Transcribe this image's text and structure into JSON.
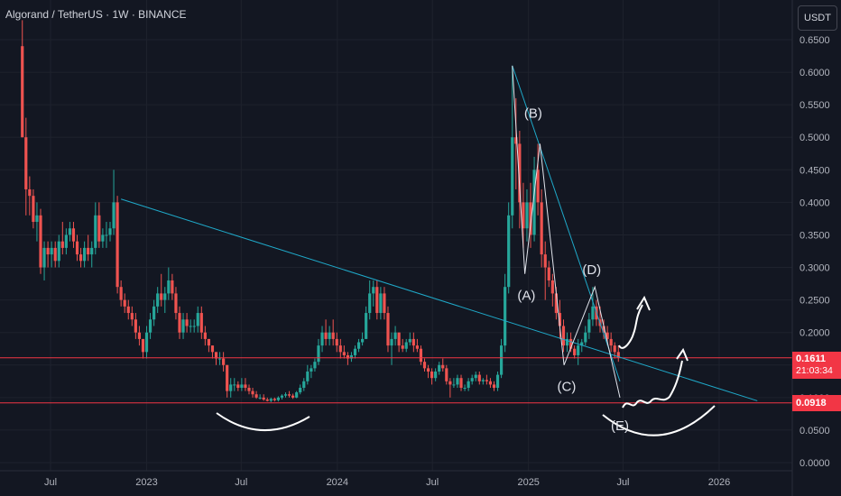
{
  "header": {
    "title": "Algorand / TetherUS · 1W · BINANCE",
    "currency_button": "USDT"
  },
  "colors": {
    "background": "#131722",
    "up": "#26a69a",
    "down": "#ef5350",
    "trendline": "#1fa9c9",
    "level": "#f23645",
    "grid": "#1e222d"
  },
  "price_tags": {
    "current_price": "0.1611",
    "countdown": "21:03:34",
    "support_price": "0.0918"
  },
  "chart_data": {
    "type": "candlestick",
    "title": "Algorand / TetherUS · 1W · BINANCE",
    "y_axis": {
      "ticks": [
        "0.6500",
        "0.6000",
        "0.5500",
        "0.5000",
        "0.4500",
        "0.4000",
        "0.3500",
        "0.3000",
        "0.2500",
        "0.2000",
        "0.1500",
        "0.1000",
        "0.0500",
        "0.0000"
      ],
      "range": [
        0,
        0.68
      ]
    },
    "x_axis": {
      "ticks": [
        "Jul",
        "2023",
        "Jul",
        "2024",
        "Jul",
        "2025",
        "Jul",
        "2026"
      ],
      "range": [
        "2022-05-01",
        "2026-05-01"
      ]
    },
    "price_line": {
      "price": 0.1611
    },
    "horizontal_levels": [
      0.1611,
      0.0918
    ],
    "trendlines": [
      {
        "from": [
          "2022-11-13",
          0.405
        ],
        "to": [
          "2026-03-15",
          0.095
        ]
      },
      {
        "from": [
          "2024-12-01",
          0.61
        ],
        "to": [
          "2025-06-25",
          0.125
        ]
      }
    ],
    "wave_labels": [
      {
        "label": "(A)",
        "date": "2024-12-28",
        "price": 0.25
      },
      {
        "label": "(B)",
        "date": "2025-01-10",
        "price": 0.53
      },
      {
        "label": "(C)",
        "date": "2025-03-15",
        "price": 0.11
      },
      {
        "label": "(D)",
        "date": "2025-05-02",
        "price": 0.29
      },
      {
        "label": "(E)",
        "date": "2025-06-25",
        "price": 0.05
      }
    ],
    "wave_path": [
      [
        "2024-12-01",
        0.61
      ],
      [
        "2024-12-25",
        0.29
      ],
      [
        "2025-01-23",
        0.49
      ],
      [
        "2025-03-10",
        0.15
      ],
      [
        "2025-05-08",
        0.27
      ],
      [
        "2025-06-25",
        0.1
      ]
    ],
    "candles": [
      [
        "2022-05-08",
        0.64,
        0.68,
        0.5,
        0.5
      ],
      [
        "2022-05-15",
        0.5,
        0.53,
        0.38,
        0.42
      ],
      [
        "2022-05-22",
        0.42,
        0.44,
        0.38,
        0.41
      ],
      [
        "2022-05-29",
        0.41,
        0.42,
        0.36,
        0.37
      ],
      [
        "2022-06-05",
        0.37,
        0.4,
        0.34,
        0.38
      ],
      [
        "2022-06-12",
        0.38,
        0.39,
        0.29,
        0.3
      ],
      [
        "2022-06-19",
        0.3,
        0.34,
        0.28,
        0.33
      ],
      [
        "2022-06-26",
        0.33,
        0.34,
        0.3,
        0.32
      ],
      [
        "2022-07-03",
        0.32,
        0.34,
        0.3,
        0.33
      ],
      [
        "2022-07-10",
        0.33,
        0.34,
        0.3,
        0.31
      ],
      [
        "2022-07-17",
        0.31,
        0.35,
        0.3,
        0.34
      ],
      [
        "2022-07-24",
        0.34,
        0.37,
        0.32,
        0.33
      ],
      [
        "2022-07-31",
        0.33,
        0.36,
        0.32,
        0.35
      ],
      [
        "2022-08-07",
        0.35,
        0.37,
        0.34,
        0.36
      ],
      [
        "2022-08-14",
        0.36,
        0.37,
        0.33,
        0.34
      ],
      [
        "2022-08-21",
        0.34,
        0.35,
        0.31,
        0.32
      ],
      [
        "2022-08-28",
        0.32,
        0.33,
        0.3,
        0.31
      ],
      [
        "2022-09-04",
        0.31,
        0.34,
        0.3,
        0.33
      ],
      [
        "2022-09-11",
        0.33,
        0.35,
        0.31,
        0.32
      ],
      [
        "2022-09-18",
        0.32,
        0.34,
        0.3,
        0.33
      ],
      [
        "2022-09-25",
        0.33,
        0.4,
        0.32,
        0.38
      ],
      [
        "2022-10-02",
        0.38,
        0.4,
        0.33,
        0.34
      ],
      [
        "2022-10-09",
        0.34,
        0.36,
        0.33,
        0.35
      ],
      [
        "2022-10-16",
        0.35,
        0.37,
        0.33,
        0.35
      ],
      [
        "2022-10-23",
        0.35,
        0.37,
        0.34,
        0.36
      ],
      [
        "2022-10-30",
        0.36,
        0.45,
        0.35,
        0.4
      ],
      [
        "2022-11-06",
        0.4,
        0.41,
        0.26,
        0.27
      ],
      [
        "2022-11-13",
        0.27,
        0.28,
        0.24,
        0.25
      ],
      [
        "2022-11-20",
        0.25,
        0.26,
        0.23,
        0.24
      ],
      [
        "2022-11-27",
        0.24,
        0.25,
        0.22,
        0.23
      ],
      [
        "2022-12-04",
        0.23,
        0.24,
        0.21,
        0.22
      ],
      [
        "2022-12-11",
        0.22,
        0.23,
        0.19,
        0.2
      ],
      [
        "2022-12-18",
        0.2,
        0.21,
        0.18,
        0.19
      ],
      [
        "2022-12-25",
        0.19,
        0.19,
        0.16,
        0.17
      ],
      [
        "2023-01-01",
        0.17,
        0.21,
        0.16,
        0.2
      ],
      [
        "2023-01-08",
        0.2,
        0.23,
        0.19,
        0.22
      ],
      [
        "2023-01-15",
        0.22,
        0.25,
        0.21,
        0.24
      ],
      [
        "2023-01-22",
        0.24,
        0.27,
        0.23,
        0.26
      ],
      [
        "2023-01-29",
        0.26,
        0.29,
        0.24,
        0.25
      ],
      [
        "2023-02-05",
        0.25,
        0.27,
        0.23,
        0.26
      ],
      [
        "2023-02-12",
        0.26,
        0.3,
        0.25,
        0.28
      ],
      [
        "2023-02-19",
        0.28,
        0.29,
        0.25,
        0.26
      ],
      [
        "2023-02-26",
        0.26,
        0.27,
        0.22,
        0.23
      ],
      [
        "2023-03-05",
        0.23,
        0.24,
        0.19,
        0.2
      ],
      [
        "2023-03-12",
        0.2,
        0.23,
        0.19,
        0.22
      ],
      [
        "2023-03-19",
        0.22,
        0.23,
        0.2,
        0.21
      ],
      [
        "2023-03-26",
        0.21,
        0.22,
        0.2,
        0.21
      ],
      [
        "2023-04-02",
        0.21,
        0.22,
        0.2,
        0.21
      ],
      [
        "2023-04-09",
        0.21,
        0.24,
        0.2,
        0.23
      ],
      [
        "2023-04-16",
        0.23,
        0.24,
        0.19,
        0.2
      ],
      [
        "2023-04-23",
        0.2,
        0.21,
        0.18,
        0.19
      ],
      [
        "2023-04-30",
        0.19,
        0.19,
        0.17,
        0.18
      ],
      [
        "2023-05-07",
        0.18,
        0.18,
        0.16,
        0.17
      ],
      [
        "2023-05-14",
        0.17,
        0.17,
        0.15,
        0.16
      ],
      [
        "2023-05-21",
        0.16,
        0.17,
        0.15,
        0.16
      ],
      [
        "2023-05-28",
        0.16,
        0.17,
        0.14,
        0.15
      ],
      [
        "2023-06-04",
        0.15,
        0.15,
        0.1,
        0.11
      ],
      [
        "2023-06-11",
        0.11,
        0.13,
        0.1,
        0.12
      ],
      [
        "2023-06-18",
        0.12,
        0.13,
        0.11,
        0.12
      ],
      [
        "2023-06-25",
        0.12,
        0.125,
        0.11,
        0.115
      ],
      [
        "2023-07-02",
        0.115,
        0.13,
        0.11,
        0.12
      ],
      [
        "2023-07-09",
        0.12,
        0.13,
        0.11,
        0.115
      ],
      [
        "2023-07-16",
        0.115,
        0.12,
        0.105,
        0.11
      ],
      [
        "2023-07-23",
        0.11,
        0.115,
        0.1,
        0.105
      ],
      [
        "2023-07-30",
        0.105,
        0.11,
        0.098,
        0.1
      ],
      [
        "2023-08-06",
        0.1,
        0.105,
        0.097,
        0.1
      ],
      [
        "2023-08-13",
        0.1,
        0.105,
        0.095,
        0.097
      ],
      [
        "2023-08-20",
        0.097,
        0.1,
        0.094,
        0.095
      ],
      [
        "2023-08-27",
        0.095,
        0.1,
        0.093,
        0.098
      ],
      [
        "2023-09-03",
        0.098,
        0.1,
        0.094,
        0.096
      ],
      [
        "2023-09-10",
        0.096,
        0.102,
        0.094,
        0.1
      ],
      [
        "2023-09-17",
        0.1,
        0.105,
        0.097,
        0.103
      ],
      [
        "2023-09-24",
        0.103,
        0.108,
        0.1,
        0.105
      ],
      [
        "2023-10-01",
        0.105,
        0.11,
        0.1,
        0.103
      ],
      [
        "2023-10-08",
        0.103,
        0.106,
        0.098,
        0.1
      ],
      [
        "2023-10-15",
        0.1,
        0.11,
        0.099,
        0.108
      ],
      [
        "2023-10-22",
        0.108,
        0.12,
        0.105,
        0.115
      ],
      [
        "2023-10-29",
        0.115,
        0.13,
        0.11,
        0.125
      ],
      [
        "2023-11-05",
        0.125,
        0.15,
        0.12,
        0.14
      ],
      [
        "2023-11-12",
        0.14,
        0.15,
        0.13,
        0.145
      ],
      [
        "2023-11-19",
        0.145,
        0.16,
        0.14,
        0.155
      ],
      [
        "2023-11-26",
        0.155,
        0.19,
        0.15,
        0.18
      ],
      [
        "2023-12-03",
        0.18,
        0.21,
        0.17,
        0.2
      ],
      [
        "2023-12-10",
        0.2,
        0.22,
        0.18,
        0.19
      ],
      [
        "2023-12-17",
        0.19,
        0.21,
        0.18,
        0.2
      ],
      [
        "2023-12-24",
        0.2,
        0.22,
        0.18,
        0.19
      ],
      [
        "2023-12-31",
        0.19,
        0.2,
        0.17,
        0.18
      ],
      [
        "2024-01-07",
        0.18,
        0.19,
        0.16,
        0.17
      ],
      [
        "2024-01-14",
        0.17,
        0.18,
        0.16,
        0.165
      ],
      [
        "2024-01-21",
        0.165,
        0.17,
        0.15,
        0.16
      ],
      [
        "2024-01-28",
        0.16,
        0.17,
        0.155,
        0.165
      ],
      [
        "2024-02-04",
        0.165,
        0.18,
        0.16,
        0.175
      ],
      [
        "2024-02-11",
        0.175,
        0.19,
        0.17,
        0.185
      ],
      [
        "2024-02-18",
        0.185,
        0.2,
        0.18,
        0.19
      ],
      [
        "2024-02-25",
        0.19,
        0.24,
        0.19,
        0.23
      ],
      [
        "2024-03-03",
        0.23,
        0.28,
        0.22,
        0.26
      ],
      [
        "2024-03-10",
        0.26,
        0.28,
        0.24,
        0.27
      ],
      [
        "2024-03-17",
        0.27,
        0.28,
        0.22,
        0.23
      ],
      [
        "2024-03-24",
        0.23,
        0.27,
        0.22,
        0.26
      ],
      [
        "2024-03-31",
        0.26,
        0.27,
        0.22,
        0.23
      ],
      [
        "2024-04-07",
        0.23,
        0.24,
        0.17,
        0.18
      ],
      [
        "2024-04-14",
        0.18,
        0.2,
        0.15,
        0.19
      ],
      [
        "2024-04-21",
        0.19,
        0.21,
        0.18,
        0.2
      ],
      [
        "2024-04-28",
        0.2,
        0.2,
        0.17,
        0.18
      ],
      [
        "2024-05-05",
        0.18,
        0.19,
        0.17,
        0.175
      ],
      [
        "2024-05-12",
        0.175,
        0.19,
        0.17,
        0.185
      ],
      [
        "2024-05-19",
        0.185,
        0.2,
        0.18,
        0.19
      ],
      [
        "2024-05-26",
        0.19,
        0.2,
        0.17,
        0.18
      ],
      [
        "2024-06-02",
        0.18,
        0.19,
        0.17,
        0.175
      ],
      [
        "2024-06-09",
        0.175,
        0.18,
        0.15,
        0.155
      ],
      [
        "2024-06-16",
        0.155,
        0.16,
        0.14,
        0.145
      ],
      [
        "2024-06-23",
        0.145,
        0.15,
        0.13,
        0.14
      ],
      [
        "2024-06-30",
        0.14,
        0.145,
        0.12,
        0.13
      ],
      [
        "2024-07-07",
        0.13,
        0.145,
        0.125,
        0.14
      ],
      [
        "2024-07-14",
        0.14,
        0.155,
        0.135,
        0.15
      ],
      [
        "2024-07-21",
        0.15,
        0.16,
        0.14,
        0.145
      ],
      [
        "2024-07-28",
        0.145,
        0.15,
        0.12,
        0.125
      ],
      [
        "2024-08-04",
        0.125,
        0.13,
        0.1,
        0.12
      ],
      [
        "2024-08-11",
        0.12,
        0.13,
        0.115,
        0.12
      ],
      [
        "2024-08-18",
        0.12,
        0.135,
        0.115,
        0.13
      ],
      [
        "2024-08-25",
        0.13,
        0.135,
        0.11,
        0.115
      ],
      [
        "2024-09-01",
        0.115,
        0.12,
        0.11,
        0.115
      ],
      [
        "2024-09-08",
        0.115,
        0.13,
        0.11,
        0.125
      ],
      [
        "2024-09-15",
        0.125,
        0.135,
        0.12,
        0.13
      ],
      [
        "2024-09-22",
        0.13,
        0.14,
        0.125,
        0.135
      ],
      [
        "2024-09-29",
        0.135,
        0.14,
        0.12,
        0.125
      ],
      [
        "2024-10-06",
        0.125,
        0.13,
        0.12,
        0.127
      ],
      [
        "2024-10-13",
        0.127,
        0.135,
        0.12,
        0.125
      ],
      [
        "2024-10-20",
        0.125,
        0.13,
        0.115,
        0.12
      ],
      [
        "2024-10-27",
        0.12,
        0.125,
        0.11,
        0.115
      ],
      [
        "2024-11-03",
        0.115,
        0.14,
        0.11,
        0.135
      ],
      [
        "2024-11-10",
        0.135,
        0.19,
        0.13,
        0.18
      ],
      [
        "2024-11-17",
        0.18,
        0.29,
        0.17,
        0.27
      ],
      [
        "2024-11-24",
        0.27,
        0.4,
        0.26,
        0.38
      ],
      [
        "2024-12-01",
        0.38,
        0.61,
        0.36,
        0.5
      ],
      [
        "2024-12-08",
        0.5,
        0.56,
        0.42,
        0.49
      ],
      [
        "2024-12-15",
        0.49,
        0.51,
        0.36,
        0.4
      ],
      [
        "2024-12-22",
        0.4,
        0.43,
        0.33,
        0.36
      ],
      [
        "2024-12-29",
        0.36,
        0.42,
        0.34,
        0.4
      ],
      [
        "2025-01-05",
        0.4,
        0.43,
        0.33,
        0.35
      ],
      [
        "2025-01-12",
        0.35,
        0.47,
        0.34,
        0.45
      ],
      [
        "2025-01-19",
        0.45,
        0.49,
        0.38,
        0.4
      ],
      [
        "2025-01-26",
        0.4,
        0.42,
        0.3,
        0.32
      ],
      [
        "2025-02-02",
        0.32,
        0.34,
        0.25,
        0.3
      ],
      [
        "2025-02-09",
        0.3,
        0.31,
        0.27,
        0.28
      ],
      [
        "2025-02-16",
        0.28,
        0.29,
        0.24,
        0.26
      ],
      [
        "2025-02-23",
        0.26,
        0.27,
        0.22,
        0.23
      ],
      [
        "2025-03-02",
        0.23,
        0.25,
        0.19,
        0.21
      ],
      [
        "2025-03-09",
        0.21,
        0.22,
        0.17,
        0.18
      ],
      [
        "2025-03-16",
        0.18,
        0.2,
        0.17,
        0.19
      ],
      [
        "2025-03-23",
        0.19,
        0.2,
        0.17,
        0.175
      ],
      [
        "2025-03-30",
        0.175,
        0.18,
        0.16,
        0.165
      ],
      [
        "2025-04-06",
        0.165,
        0.19,
        0.15,
        0.18
      ],
      [
        "2025-04-13",
        0.18,
        0.19,
        0.17,
        0.185
      ],
      [
        "2025-04-20",
        0.185,
        0.21,
        0.18,
        0.2
      ],
      [
        "2025-04-27",
        0.2,
        0.23,
        0.19,
        0.22
      ],
      [
        "2025-05-04",
        0.22,
        0.27,
        0.21,
        0.24
      ],
      [
        "2025-05-11",
        0.24,
        0.25,
        0.21,
        0.22
      ],
      [
        "2025-05-18",
        0.22,
        0.24,
        0.2,
        0.21
      ],
      [
        "2025-05-25",
        0.21,
        0.22,
        0.19,
        0.2
      ],
      [
        "2025-06-01",
        0.2,
        0.21,
        0.18,
        0.19
      ],
      [
        "2025-06-08",
        0.19,
        0.2,
        0.17,
        0.18
      ],
      [
        "2025-06-15",
        0.18,
        0.185,
        0.16,
        0.17
      ],
      [
        "2025-06-22",
        0.17,
        0.18,
        0.155,
        0.1611
      ]
    ]
  }
}
